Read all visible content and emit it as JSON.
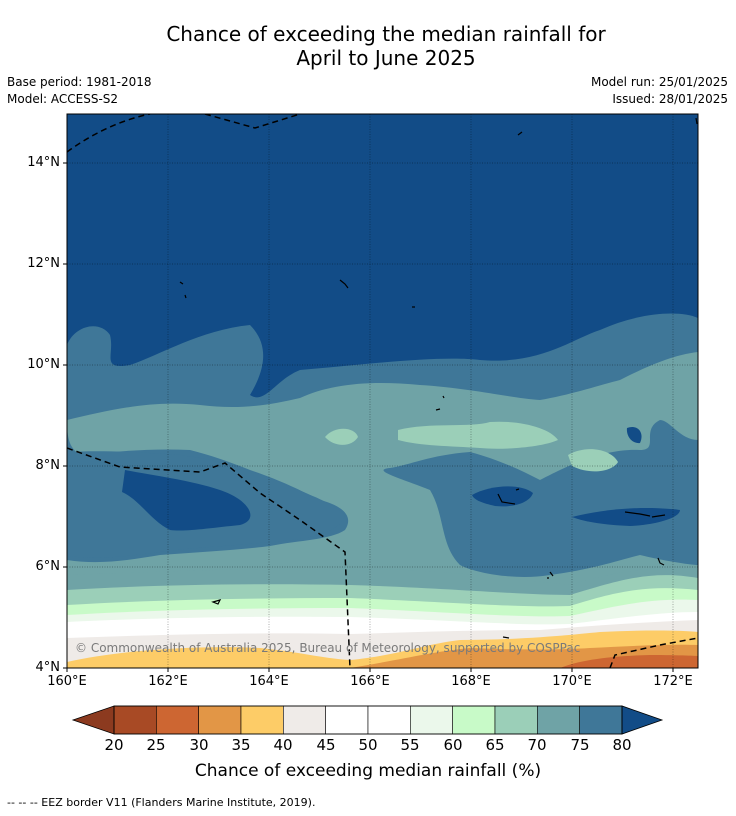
{
  "header": {
    "title_line1": "Chance of exceeding the median rainfall for",
    "title_line2": "April to June 2025",
    "base_period": "Base period: 1981-2018",
    "model": "Model: ACCESS-S2",
    "model_run": "Model run: 25/01/2025",
    "issued": "Issued: 28/01/2025"
  },
  "map": {
    "lat_labels": [
      "14°N",
      "12°N",
      "10°N",
      "8°N",
      "6°N",
      "4°N"
    ],
    "lon_labels": [
      "160°E",
      "162°E",
      "164°E",
      "166°E",
      "168°E",
      "170°E",
      "172°E"
    ],
    "lat_range": [
      4,
      15
    ],
    "lon_range": [
      160,
      172.5
    ],
    "copyright": "© Commonwealth of Australia 2025, Bureau of Meteorology, supported by COSPPac"
  },
  "colorbar": {
    "title": "Chance of exceeding median rainfall (%)",
    "ticks": [
      "20",
      "25",
      "30",
      "35",
      "40",
      "45",
      "50",
      "55",
      "60",
      "65",
      "70",
      "75",
      "80"
    ],
    "colors": [
      "#a84a25",
      "#cd6632",
      "#e29646",
      "#fdcc67",
      "#efebe8",
      "#ffffff",
      "#ffffff",
      "#ebf8eb",
      "#c8fac8",
      "#9bcfb8",
      "#6fa3a6",
      "#3f7798",
      "#124c87"
    ],
    "under_color": "#8c3a1f",
    "over_color": "#124c87"
  },
  "footer": {
    "eez_note": "--  --  -- EEZ border V11 (Flanders Marine Institute, 2019)."
  }
}
